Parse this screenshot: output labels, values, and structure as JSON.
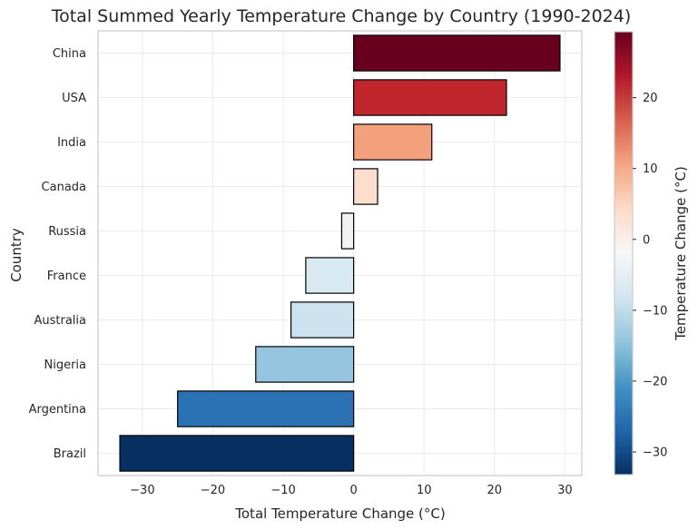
{
  "chart_data": {
    "type": "bar",
    "orientation": "horizontal",
    "title": "Total Summed Yearly Temperature Change by Country (1990-2024)",
    "xlabel": "Total Temperature Change (°C)",
    "ylabel": "Country",
    "categories": [
      "China",
      "USA",
      "India",
      "Canada",
      "Russia",
      "France",
      "Australia",
      "Nigeria",
      "Argentina",
      "Brazil"
    ],
    "values": [
      29.3,
      21.7,
      11.1,
      3.4,
      -1.7,
      -6.8,
      -8.9,
      -13.9,
      -25.0,
      -33.2
    ],
    "xlim": [
      -36.3,
      32.4
    ],
    "xticks": [
      -30,
      -20,
      -10,
      0,
      10,
      20,
      30
    ],
    "grid": true,
    "colormap": "RdBu_r",
    "colorbar": {
      "label": "Temperature Change (°C)",
      "range": [
        -33.2,
        29.3
      ],
      "ticks": [
        20,
        10,
        0,
        -10,
        -20,
        -30
      ],
      "colors": [
        "#053061",
        "#2166ac",
        "#4393c3",
        "#92c5de",
        "#d1e5f0",
        "#f7f7f7",
        "#fddbc7",
        "#f4a582",
        "#d6604d",
        "#b2182b",
        "#67001f"
      ]
    },
    "bar_colors": [
      "#67001f",
      "#c0272d",
      "#f3a07c",
      "#fcdecf",
      "#f2f2f2",
      "#d8e9f1",
      "#cce2ee",
      "#96c6df",
      "#2a72b3",
      "#053061"
    ],
    "tick_minus_sign": "−"
  }
}
